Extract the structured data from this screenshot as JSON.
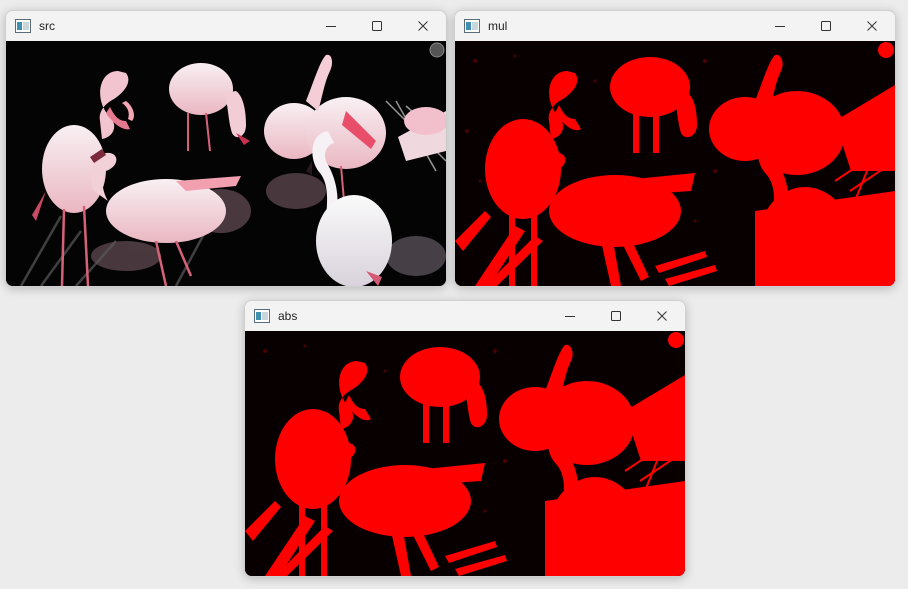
{
  "windows": [
    {
      "id": "src",
      "title": "src"
    },
    {
      "id": "mul",
      "title": "mul"
    },
    {
      "id": "abs",
      "title": "abs"
    }
  ],
  "controls": {
    "minimize": "minimize-icon",
    "maximize": "maximize-icon",
    "close": "close-icon"
  },
  "colors": {
    "mask_red": "#ff0000",
    "flamingo_pink": "#f2cbd2",
    "flamingo_white": "#f7f3f5",
    "background": "#000000"
  }
}
